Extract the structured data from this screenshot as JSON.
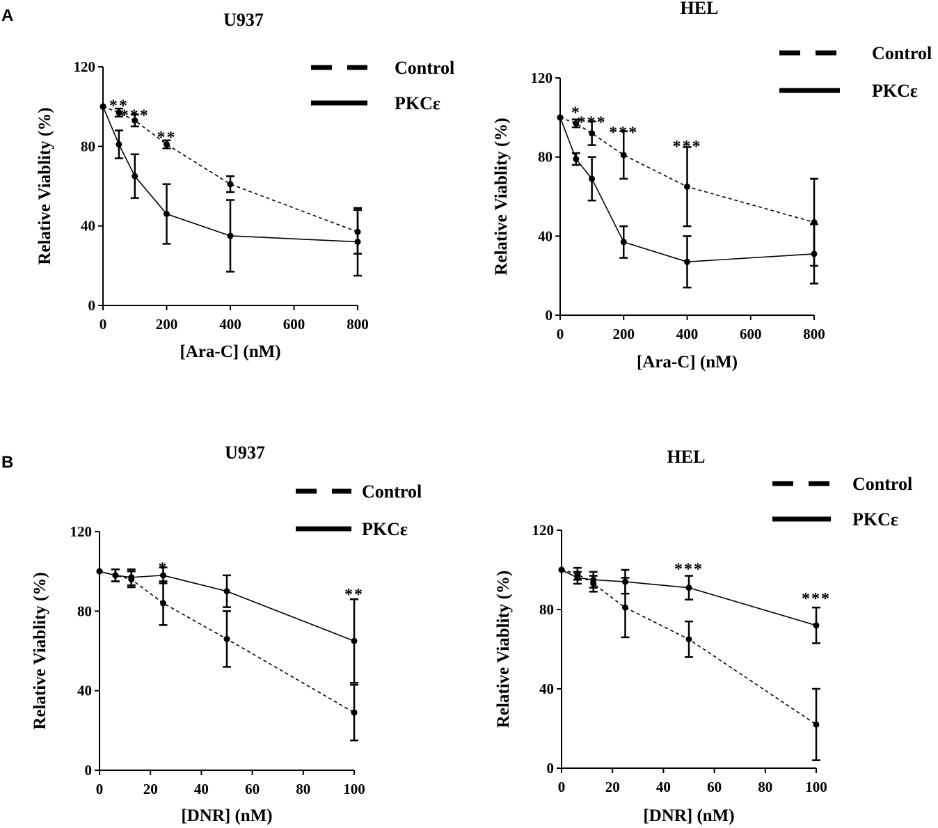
{
  "panels": [
    {
      "label": "A"
    },
    {
      "label": "B"
    }
  ],
  "chart_data": [
    {
      "type": "line",
      "panel": "A",
      "title": "U937",
      "xlabel": "[Ara-C] (nM)",
      "ylabel": "Relative Viablity (%)",
      "xlim": [
        0,
        800
      ],
      "ylim": [
        0,
        120
      ],
      "xticks": [
        0,
        200,
        400,
        600,
        800
      ],
      "yticks": [
        0,
        40,
        80,
        120
      ],
      "legend_position": "top-right",
      "series": [
        {
          "name": "Control",
          "style": "dashed",
          "x": [
            0,
            50,
            100,
            200,
            400,
            800
          ],
          "y": [
            100,
            97,
            93,
            81,
            61,
            37
          ],
          "err": [
            0,
            2,
            3,
            2,
            4,
            11
          ]
        },
        {
          "name": "PKCε",
          "style": "solid",
          "x": [
            0,
            50,
            100,
            200,
            400,
            800
          ],
          "y": [
            100,
            81,
            65,
            46,
            35,
            32
          ],
          "err": [
            0,
            7,
            11,
            15,
            18,
            17
          ]
        }
      ],
      "annotations": [
        {
          "x": 50,
          "y": 102,
          "text": "**"
        },
        {
          "x": 100,
          "y": 97,
          "text": "***"
        },
        {
          "x": 200,
          "y": 86,
          "text": "**"
        }
      ]
    },
    {
      "type": "line",
      "panel": "A",
      "title": "HEL",
      "xlabel": "[Ara-C] (nM)",
      "ylabel": "Relative Viablity (%)",
      "xlim": [
        0,
        800
      ],
      "ylim": [
        0,
        120
      ],
      "xticks": [
        0,
        200,
        400,
        600,
        800
      ],
      "yticks": [
        0,
        40,
        80,
        120
      ],
      "legend_position": "top-right",
      "series": [
        {
          "name": "Control",
          "style": "dashed",
          "x": [
            0,
            50,
            100,
            200,
            400,
            800
          ],
          "y": [
            100,
            97,
            92,
            81,
            65,
            47
          ],
          "err": [
            0,
            2,
            6,
            12,
            20,
            22
          ]
        },
        {
          "name": "PKCε",
          "style": "solid",
          "x": [
            0,
            50,
            100,
            200,
            400,
            800
          ],
          "y": [
            100,
            79,
            69,
            37,
            27,
            31
          ],
          "err": [
            0,
            3,
            11,
            8,
            13,
            15
          ]
        }
      ],
      "annotations": [
        {
          "x": 50,
          "y": 104,
          "text": "*"
        },
        {
          "x": 100,
          "y": 99,
          "text": "***"
        },
        {
          "x": 200,
          "y": 94,
          "text": "***"
        },
        {
          "x": 400,
          "y": 87,
          "text": "***"
        }
      ]
    },
    {
      "type": "line",
      "panel": "B",
      "title": "U937",
      "xlabel": "[DNR] (nM)",
      "ylabel": "Relative Viablity (%)",
      "xlim": [
        0,
        100
      ],
      "ylim": [
        0,
        120
      ],
      "xticks": [
        0,
        20,
        40,
        60,
        80,
        100
      ],
      "yticks": [
        0,
        40,
        80,
        120
      ],
      "legend_position": "top-right",
      "series": [
        {
          "name": "Control",
          "style": "dashed",
          "x": [
            0,
            6.25,
            12.5,
            25,
            50,
            100
          ],
          "y": [
            100,
            98,
            96,
            84,
            66,
            29
          ],
          "err": [
            0,
            3,
            4,
            11,
            14,
            14
          ]
        },
        {
          "name": "PKCε",
          "style": "solid",
          "x": [
            0,
            6.25,
            12.5,
            25,
            50,
            100
          ],
          "y": [
            100,
            98,
            97,
            98,
            90,
            65
          ],
          "err": [
            0,
            3,
            4,
            4,
            8,
            21
          ]
        }
      ],
      "annotations": [
        {
          "x": 25,
          "y": 103,
          "text": "*"
        },
        {
          "x": 100,
          "y": 90,
          "text": "**"
        }
      ]
    },
    {
      "type": "line",
      "panel": "B",
      "title": "HEL",
      "xlabel": "[DNR] (nM)",
      "ylabel": "Relative Viablity (%)",
      "xlim": [
        0,
        100
      ],
      "ylim": [
        0,
        120
      ],
      "xticks": [
        0,
        20,
        40,
        60,
        80,
        100
      ],
      "yticks": [
        0,
        40,
        80,
        120
      ],
      "legend_position": "top-right",
      "series": [
        {
          "name": "Control",
          "style": "dashed",
          "x": [
            0,
            6.25,
            12.5,
            25,
            50,
            100
          ],
          "y": [
            100,
            98,
            93,
            81,
            65,
            22
          ],
          "err": [
            0,
            3,
            4,
            15,
            9,
            18
          ]
        },
        {
          "name": "PKCε",
          "style": "solid",
          "x": [
            0,
            6.25,
            12.5,
            25,
            50,
            100
          ],
          "y": [
            100,
            96,
            95,
            94,
            91,
            72
          ],
          "err": [
            0,
            3,
            4,
            6,
            6,
            9
          ]
        }
      ],
      "annotations": [
        {
          "x": 50,
          "y": 102,
          "text": "***"
        },
        {
          "x": 100,
          "y": 87,
          "text": "***"
        }
      ]
    }
  ]
}
